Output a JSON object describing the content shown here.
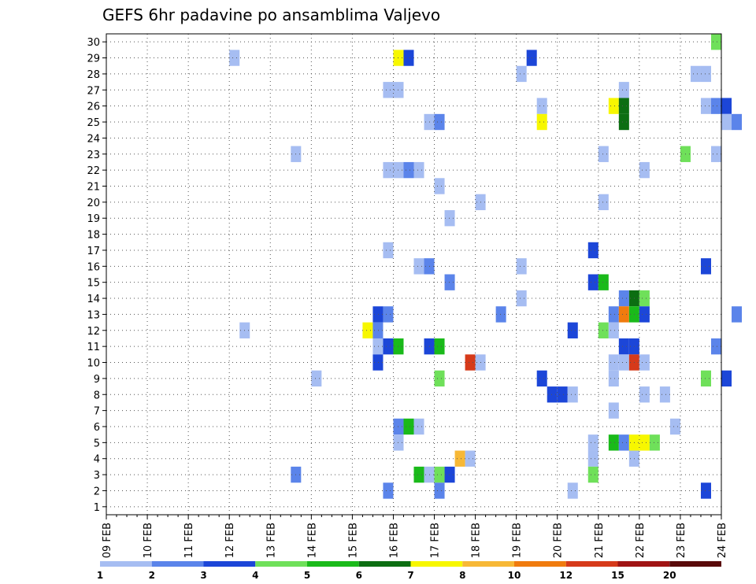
{
  "chart_data": {
    "type": "heatmap",
    "title": "GEFS 6hr padavine po ansamblima Valjevo",
    "x_tick_labels": [
      "09 FEB",
      "10 FEB",
      "11 FEB",
      "12 FEB",
      "13 FEB",
      "14 FEB",
      "15 FEB",
      "16 FEB",
      "17 FEB",
      "18 FEB",
      "19 FEB",
      "20 FEB",
      "21 FEB",
      "22 FEB",
      "23 FEB",
      "24 FEB"
    ],
    "y_tick_labels": [
      "1",
      "2",
      "3",
      "4",
      "5",
      "6",
      "7",
      "8",
      "9",
      "10",
      "11",
      "12",
      "13",
      "14",
      "15",
      "16",
      "17",
      "18",
      "19",
      "20",
      "21",
      "22",
      "23",
      "24",
      "25",
      "26",
      "27",
      "28",
      "29",
      "30"
    ],
    "ylim": [
      1,
      30
    ],
    "x_step": "6hr",
    "grid": true,
    "colorbar": {
      "labels": [
        "1",
        "2",
        "3",
        "4",
        "5",
        "6",
        "7",
        "8",
        "10",
        "12",
        "15",
        "20"
      ],
      "colors": [
        "#a6bdf2",
        "#5b84ea",
        "#1c46d8",
        "#6fe05a",
        "#1aba1a",
        "#0c6e12",
        "#f7f700",
        "#f7b836",
        "#f07b0e",
        "#d63a1a",
        "#a01414",
        "#5a0a0a"
      ]
    },
    "cells": [
      {
        "t": 12,
        "m": 29,
        "c": 0
      },
      {
        "t": 28,
        "m": 29,
        "c": 6
      },
      {
        "t": 29,
        "m": 29,
        "c": 2
      },
      {
        "t": 41,
        "m": 29,
        "c": 2
      },
      {
        "t": 40,
        "m": 28,
        "c": 0
      },
      {
        "t": 57,
        "m": 28,
        "c": 0
      },
      {
        "t": 58,
        "m": 28,
        "c": 0
      },
      {
        "t": 27,
        "m": 27,
        "c": 0
      },
      {
        "t": 28,
        "m": 27,
        "c": 0
      },
      {
        "t": 50,
        "m": 27,
        "c": 0
      },
      {
        "t": 42,
        "m": 26,
        "c": 0
      },
      {
        "t": 49,
        "m": 26,
        "c": 6
      },
      {
        "t": 50,
        "m": 26,
        "c": 5
      },
      {
        "t": 58,
        "m": 26,
        "c": 0
      },
      {
        "t": 59,
        "m": 26,
        "c": 1
      },
      {
        "t": 60,
        "m": 26,
        "c": 2
      },
      {
        "t": 31,
        "m": 25,
        "c": 0
      },
      {
        "t": 32,
        "m": 25,
        "c": 1
      },
      {
        "t": 42,
        "m": 25,
        "c": 6
      },
      {
        "t": 50,
        "m": 25,
        "c": 5
      },
      {
        "t": 60,
        "m": 25,
        "c": 0
      },
      {
        "t": 61,
        "m": 25,
        "c": 1
      },
      {
        "t": 18,
        "m": 23,
        "c": 0
      },
      {
        "t": 48,
        "m": 23,
        "c": 0
      },
      {
        "t": 56,
        "m": 23,
        "c": 3
      },
      {
        "t": 59,
        "m": 23,
        "c": 0
      },
      {
        "t": 27,
        "m": 22,
        "c": 0
      },
      {
        "t": 28,
        "m": 22,
        "c": 0
      },
      {
        "t": 29,
        "m": 22,
        "c": 1
      },
      {
        "t": 30,
        "m": 22,
        "c": 0
      },
      {
        "t": 52,
        "m": 22,
        "c": 0
      },
      {
        "t": 32,
        "m": 21,
        "c": 0
      },
      {
        "t": 36,
        "m": 20,
        "c": 0
      },
      {
        "t": 48,
        "m": 20,
        "c": 0
      },
      {
        "t": 33,
        "m": 19,
        "c": 0
      },
      {
        "t": 27,
        "m": 17,
        "c": 0
      },
      {
        "t": 47,
        "m": 17,
        "c": 2
      },
      {
        "t": 30,
        "m": 16,
        "c": 0
      },
      {
        "t": 31,
        "m": 16,
        "c": 1
      },
      {
        "t": 40,
        "m": 16,
        "c": 0
      },
      {
        "t": 58,
        "m": 16,
        "c": 2
      },
      {
        "t": 33,
        "m": 15,
        "c": 1
      },
      {
        "t": 47,
        "m": 15,
        "c": 2
      },
      {
        "t": 48,
        "m": 15,
        "c": 4
      },
      {
        "t": 40,
        "m": 14,
        "c": 0
      },
      {
        "t": 50,
        "m": 14,
        "c": 1
      },
      {
        "t": 51,
        "m": 14,
        "c": 5
      },
      {
        "t": 52,
        "m": 14,
        "c": 3
      },
      {
        "t": 26,
        "m": 13,
        "c": 2
      },
      {
        "t": 27,
        "m": 13,
        "c": 1
      },
      {
        "t": 38,
        "m": 13,
        "c": 1
      },
      {
        "t": 49,
        "m": 13,
        "c": 1
      },
      {
        "t": 50,
        "m": 13,
        "c": 8
      },
      {
        "t": 51,
        "m": 13,
        "c": 4
      },
      {
        "t": 52,
        "m": 13,
        "c": 2
      },
      {
        "t": 61,
        "m": 13,
        "c": 1
      },
      {
        "t": 13,
        "m": 12,
        "c": 0
      },
      {
        "t": 25,
        "m": 12,
        "c": 6
      },
      {
        "t": 26,
        "m": 12,
        "c": 1
      },
      {
        "t": 45,
        "m": 12,
        "c": 2
      },
      {
        "t": 48,
        "m": 12,
        "c": 3
      },
      {
        "t": 49,
        "m": 12,
        "c": 0
      },
      {
        "t": 26,
        "m": 11,
        "c": 0
      },
      {
        "t": 27,
        "m": 11,
        "c": 2
      },
      {
        "t": 28,
        "m": 11,
        "c": 4
      },
      {
        "t": 31,
        "m": 11,
        "c": 2
      },
      {
        "t": 32,
        "m": 11,
        "c": 4
      },
      {
        "t": 50,
        "m": 11,
        "c": 2
      },
      {
        "t": 51,
        "m": 11,
        "c": 2
      },
      {
        "t": 59,
        "m": 11,
        "c": 1
      },
      {
        "t": 26,
        "m": 10,
        "c": 2
      },
      {
        "t": 35,
        "m": 10,
        "c": 9
      },
      {
        "t": 36,
        "m": 10,
        "c": 0
      },
      {
        "t": 49,
        "m": 10,
        "c": 0
      },
      {
        "t": 50,
        "m": 10,
        "c": 0
      },
      {
        "t": 51,
        "m": 10,
        "c": 9
      },
      {
        "t": 52,
        "m": 10,
        "c": 0
      },
      {
        "t": 20,
        "m": 9,
        "c": 0
      },
      {
        "t": 32,
        "m": 9,
        "c": 3
      },
      {
        "t": 42,
        "m": 9,
        "c": 2
      },
      {
        "t": 49,
        "m": 9,
        "c": 0
      },
      {
        "t": 58,
        "m": 9,
        "c": 3
      },
      {
        "t": 60,
        "m": 9,
        "c": 2
      },
      {
        "t": 43,
        "m": 8,
        "c": 2
      },
      {
        "t": 44,
        "m": 8,
        "c": 2
      },
      {
        "t": 45,
        "m": 8,
        "c": 0
      },
      {
        "t": 52,
        "m": 8,
        "c": 0
      },
      {
        "t": 54,
        "m": 8,
        "c": 0
      },
      {
        "t": 49,
        "m": 7,
        "c": 0
      },
      {
        "t": 28,
        "m": 6,
        "c": 1
      },
      {
        "t": 29,
        "m": 6,
        "c": 4
      },
      {
        "t": 30,
        "m": 6,
        "c": 0
      },
      {
        "t": 55,
        "m": 6,
        "c": 0
      },
      {
        "t": 28,
        "m": 5,
        "c": 0
      },
      {
        "t": 47,
        "m": 5,
        "c": 0
      },
      {
        "t": 49,
        "m": 5,
        "c": 4
      },
      {
        "t": 50,
        "m": 5,
        "c": 1
      },
      {
        "t": 51,
        "m": 5,
        "c": 6
      },
      {
        "t": 52,
        "m": 5,
        "c": 6
      },
      {
        "t": 53,
        "m": 5,
        "c": 3
      },
      {
        "t": 34,
        "m": 4,
        "c": 7
      },
      {
        "t": 35,
        "m": 4,
        "c": 0
      },
      {
        "t": 47,
        "m": 4,
        "c": 0
      },
      {
        "t": 51,
        "m": 4,
        "c": 0
      },
      {
        "t": 18,
        "m": 3,
        "c": 1
      },
      {
        "t": 30,
        "m": 3,
        "c": 4
      },
      {
        "t": 31,
        "m": 3,
        "c": 0
      },
      {
        "t": 32,
        "m": 3,
        "c": 3
      },
      {
        "t": 33,
        "m": 3,
        "c": 2
      },
      {
        "t": 47,
        "m": 3,
        "c": 3
      },
      {
        "t": 27,
        "m": 2,
        "c": 1
      },
      {
        "t": 32,
        "m": 2,
        "c": 1
      },
      {
        "t": 45,
        "m": 2,
        "c": 0
      },
      {
        "t": 58,
        "m": 2,
        "c": 2
      },
      {
        "t": 59,
        "m": 30,
        "c": 3
      }
    ]
  }
}
